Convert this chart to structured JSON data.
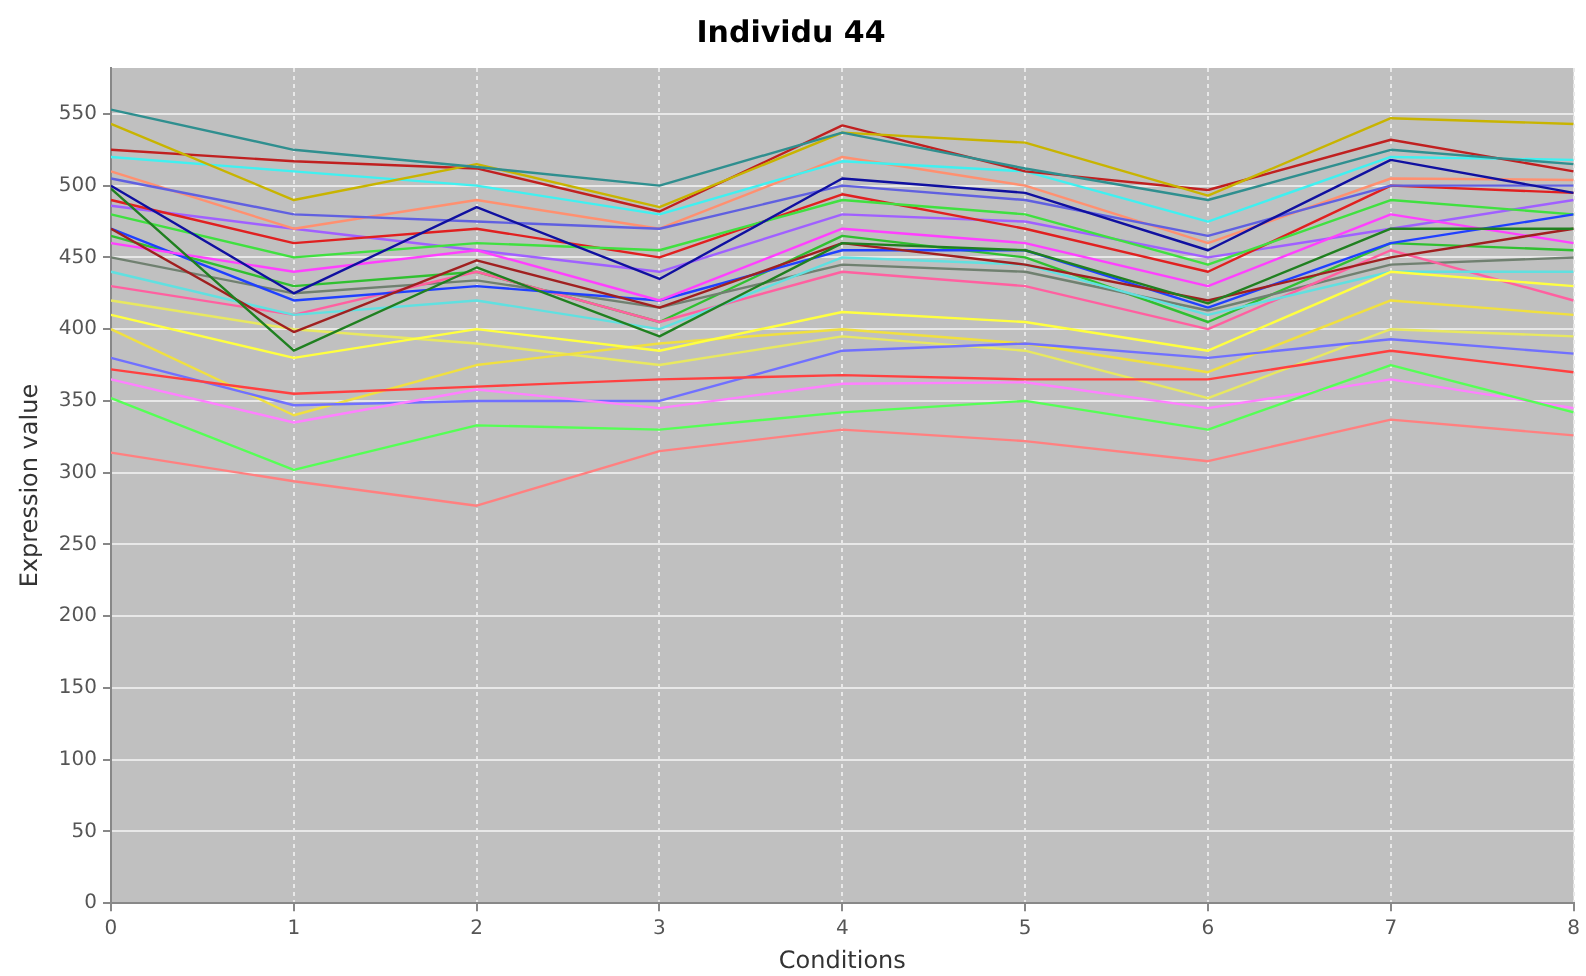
{
  "chart_data": {
    "type": "line",
    "title": "Individu 44",
    "xlabel": "Conditions",
    "ylabel": "Expression value",
    "x": [
      0,
      1,
      2,
      3,
      4,
      5,
      6,
      7,
      8
    ],
    "xlim": [
      0,
      8
    ],
    "xticks": [
      0,
      1,
      2,
      3,
      4,
      5,
      6,
      7,
      8
    ],
    "ylim": [
      0,
      582
    ],
    "yticks": [
      0,
      50,
      100,
      150,
      200,
      250,
      300,
      350,
      400,
      450,
      500,
      550
    ],
    "grid": true,
    "legend": false,
    "marker": "none",
    "line_style": "solid",
    "series": [
      {
        "color": "#ff8080",
        "values": [
          314,
          294,
          277,
          315,
          330,
          322,
          308,
          337,
          326
        ]
      },
      {
        "color": "#55ff55",
        "values": [
          352,
          302,
          333,
          330,
          342,
          350,
          330,
          375,
          342
        ]
      },
      {
        "color": "#ff80ff",
        "values": [
          365,
          335,
          358,
          345,
          362,
          363,
          345,
          365,
          345
        ]
      },
      {
        "color": "#ff4040",
        "values": [
          372,
          355,
          360,
          365,
          368,
          365,
          365,
          385,
          370
        ]
      },
      {
        "color": "#7070ff",
        "values": [
          380,
          347,
          350,
          350,
          385,
          390,
          380,
          393,
          383
        ]
      },
      {
        "color": "#2f8f8f",
        "values": [
          553,
          525,
          513,
          500,
          537,
          512,
          490,
          525,
          515
        ]
      },
      {
        "color": "#c8b400",
        "values": [
          543,
          490,
          515,
          485,
          537,
          530,
          493,
          547,
          543
        ]
      },
      {
        "color": "#c02020",
        "values": [
          525,
          517,
          512,
          482,
          542,
          510,
          497,
          532,
          510
        ]
      },
      {
        "color": "#40f0f0",
        "values": [
          520,
          510,
          500,
          480,
          517,
          510,
          475,
          520,
          518
        ]
      },
      {
        "color": "#1010a0",
        "values": [
          500,
          425,
          485,
          435,
          505,
          495,
          455,
          518,
          495
        ]
      },
      {
        "color": "#208020",
        "values": [
          498,
          385,
          443,
          395,
          460,
          455,
          418,
          470,
          470
        ]
      },
      {
        "color": "#a02020",
        "values": [
          470,
          398,
          448,
          415,
          460,
          445,
          420,
          450,
          470
        ]
      },
      {
        "color": "#ffff40",
        "values": [
          410,
          380,
          400,
          385,
          412,
          405,
          385,
          440,
          430
        ]
      },
      {
        "color": "#f0e040",
        "values": [
          400,
          340,
          375,
          390,
          400,
          390,
          370,
          420,
          410
        ]
      },
      {
        "color": "#ff40ff",
        "values": [
          460,
          440,
          455,
          420,
          470,
          460,
          430,
          480,
          460
        ]
      },
      {
        "color": "#2040ff",
        "values": [
          470,
          420,
          430,
          420,
          455,
          455,
          415,
          460,
          480
        ]
      },
      {
        "color": "#40e040",
        "values": [
          480,
          450,
          460,
          455,
          490,
          480,
          445,
          490,
          480
        ]
      },
      {
        "color": "#6060e0",
        "values": [
          505,
          480,
          475,
          470,
          500,
          490,
          465,
          500,
          500
        ]
      },
      {
        "color": "#60e0e0",
        "values": [
          440,
          410,
          420,
          400,
          450,
          445,
          410,
          440,
          440
        ]
      },
      {
        "color": "#ff60a0",
        "values": [
          430,
          410,
          440,
          405,
          440,
          430,
          400,
          455,
          420
        ]
      },
      {
        "color": "#e02020",
        "values": [
          490,
          460,
          470,
          450,
          494,
          470,
          440,
          500,
          495
        ]
      },
      {
        "color": "#ff9070",
        "values": [
          510,
          470,
          490,
          470,
          520,
          500,
          460,
          505,
          504
        ]
      },
      {
        "color": "#708070",
        "values": [
          450,
          425,
          434,
          415,
          445,
          440,
          413,
          445,
          450
        ]
      },
      {
        "color": "#e8e860",
        "values": [
          420,
          400,
          390,
          375,
          395,
          385,
          352,
          400,
          395
        ]
      },
      {
        "color": "#a060ff",
        "values": [
          486,
          470,
          455,
          440,
          480,
          475,
          450,
          470,
          490
        ]
      },
      {
        "color": "#30c030",
        "values": [
          465,
          430,
          440,
          405,
          465,
          450,
          405,
          460,
          455
        ]
      }
    ]
  }
}
